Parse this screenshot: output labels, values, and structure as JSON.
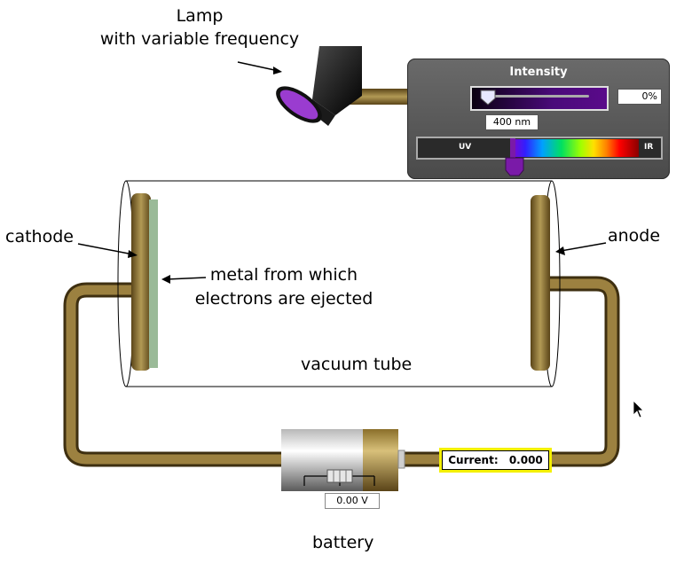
{
  "labels": {
    "lamp_line1": "Lamp",
    "lamp_line2": "with variable frequency",
    "cathode": "cathode",
    "anode": "anode",
    "metal_line1": "metal from which",
    "metal_line2": "electrons are ejected",
    "vacuum_tube": "vacuum tube",
    "battery": "battery"
  },
  "control_panel": {
    "title": "Intensity",
    "intensity_value": "0%",
    "intensity_fraction": 0,
    "wavelength_value": "400 nm",
    "spectrum_uv_label": "UV",
    "spectrum_ir_label": "IR"
  },
  "meters": {
    "current_label": "Current:",
    "current_value": "0.000",
    "voltage_value": "0.00 V"
  },
  "colors": {
    "wire": "#8a6f2a",
    "lamp_light": "#9a3cd0",
    "highlight": "#f4f000",
    "metal_plate": "#9aba98"
  }
}
